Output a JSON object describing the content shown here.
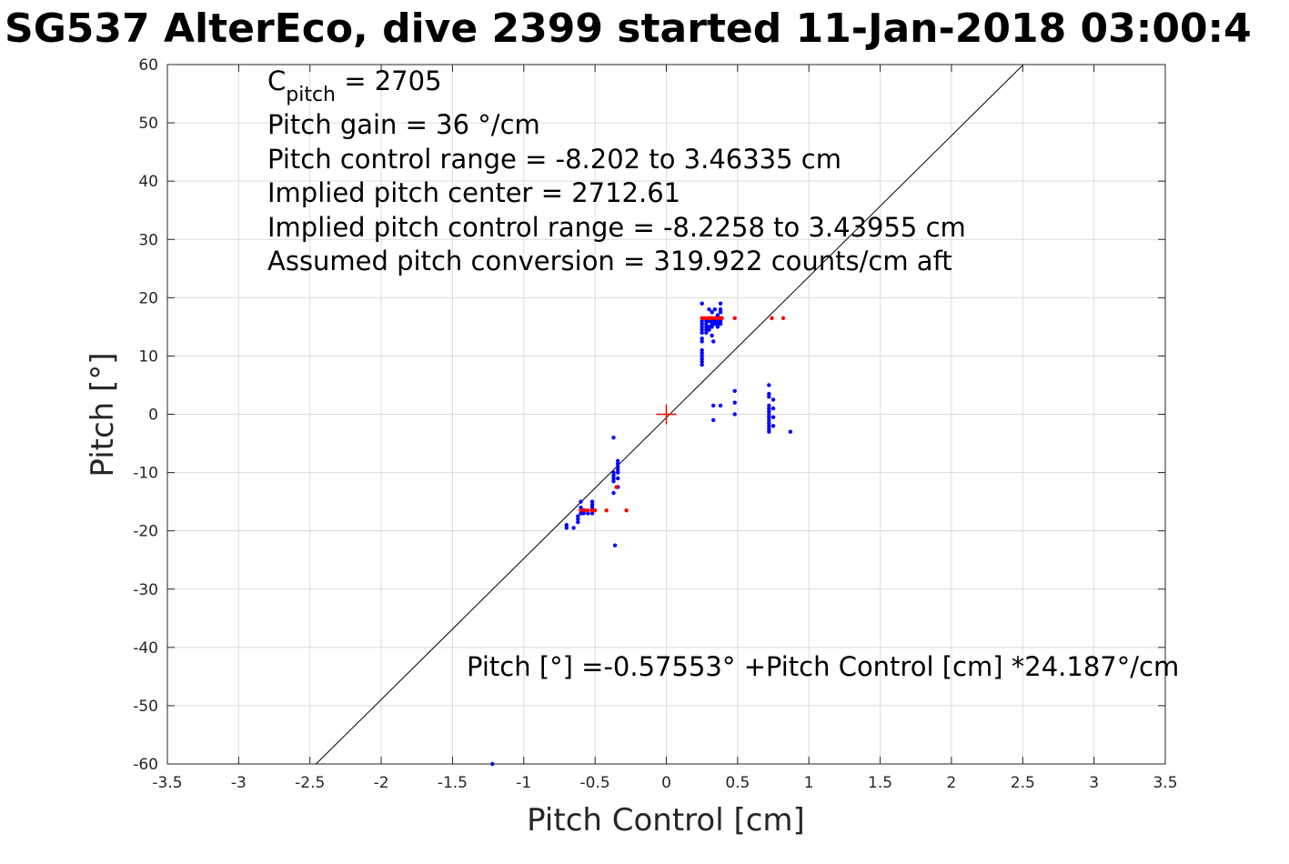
{
  "chart_data": {
    "type": "scatter",
    "title": "SG537 AlterEco, dive 2399 started 11-Jan-2018 03:00:4",
    "xlabel": "Pitch Control [cm]",
    "ylabel": "Pitch [°]",
    "xlim": [
      -3.5,
      3.5
    ],
    "ylim": [
      -60,
      60
    ],
    "xticks": [
      -3.5,
      -3,
      -2.5,
      -2,
      -1.5,
      -1,
      -0.5,
      0,
      0.5,
      1,
      1.5,
      2,
      2.5,
      3,
      3.5
    ],
    "yticks": [
      -60,
      -50,
      -40,
      -30,
      -20,
      -10,
      0,
      10,
      20,
      30,
      40,
      50,
      60
    ],
    "grid": true,
    "colors": {
      "observed": "#0000ff",
      "excluded": "#ff0000",
      "fit_line": "#000000",
      "center_marker": "#ff0000"
    },
    "annotations": {
      "c_pitch_prefix": "C",
      "c_pitch_sub": "pitch",
      "c_pitch_value": " = 2705",
      "pitch_gain": "Pitch gain = 36 °/cm",
      "pitch_control_range": "Pitch control range = -8.202 to 3.46335 cm",
      "implied_pitch_center": "Implied pitch center = 2712.61",
      "implied_control_range": "Implied pitch control range = -8.2258 to 3.43955 cm",
      "assumed_conversion": "Assumed pitch conversion = 319.922 counts/cm aft",
      "fit_equation": "Pitch [°] =-0.57553° +Pitch Control [cm] *24.187°/cm"
    },
    "fit": {
      "intercept": -0.57553,
      "slope": 24.187
    },
    "center_marker": [
      0,
      0
    ],
    "series": [
      {
        "points": [
          [
            0.25,
            19
          ],
          [
            0.25,
            16
          ],
          [
            0.25,
            15.5
          ],
          [
            0.25,
            15
          ],
          [
            0.25,
            14.5
          ],
          [
            0.25,
            14
          ],
          [
            0.25,
            13
          ],
          [
            0.25,
            12.5
          ],
          [
            0.25,
            11
          ],
          [
            0.25,
            10.5
          ],
          [
            0.25,
            10
          ],
          [
            0.25,
            9.5
          ],
          [
            0.25,
            9
          ],
          [
            0.25,
            8.5
          ],
          [
            0.28,
            16
          ],
          [
            0.28,
            15.5
          ],
          [
            0.28,
            15
          ],
          [
            0.28,
            14.5
          ],
          [
            0.28,
            14
          ],
          [
            0.3,
            18
          ],
          [
            0.3,
            16.5
          ],
          [
            0.3,
            16
          ],
          [
            0.3,
            15
          ],
          [
            0.3,
            14.5
          ],
          [
            0.32,
            17.5
          ],
          [
            0.32,
            16.5
          ],
          [
            0.32,
            16
          ],
          [
            0.32,
            15.5
          ],
          [
            0.32,
            15
          ],
          [
            0.32,
            13.5
          ],
          [
            0.33,
            12.5
          ],
          [
            0.34,
            18
          ],
          [
            0.34,
            16
          ],
          [
            0.34,
            15.5
          ],
          [
            0.36,
            17
          ],
          [
            0.36,
            16
          ],
          [
            0.36,
            15.5
          ],
          [
            0.36,
            15
          ],
          [
            0.38,
            19
          ],
          [
            0.38,
            18
          ],
          [
            0.38,
            17.5
          ],
          [
            0.38,
            16.5
          ],
          [
            0.38,
            16
          ],
          [
            0.38,
            15.5
          ],
          [
            0.33,
            1.5
          ],
          [
            0.33,
            -1
          ],
          [
            0.38,
            1.5
          ],
          [
            0.48,
            4
          ],
          [
            0.48,
            2
          ],
          [
            0.48,
            0
          ],
          [
            0.72,
            5
          ],
          [
            0.72,
            3.5
          ],
          [
            0.72,
            3
          ],
          [
            0.72,
            1.5
          ],
          [
            0.72,
            1
          ],
          [
            0.72,
            0.5
          ],
          [
            0.72,
            0
          ],
          [
            0.72,
            -0.5
          ],
          [
            0.72,
            -1
          ],
          [
            0.72,
            -1.5
          ],
          [
            0.72,
            -2
          ],
          [
            0.72,
            -2.5
          ],
          [
            0.72,
            -3
          ],
          [
            0.75,
            2.5
          ],
          [
            0.75,
            1
          ],
          [
            0.75,
            -0.5
          ],
          [
            0.75,
            -2
          ],
          [
            0.87,
            -3
          ],
          [
            -0.37,
            -4
          ],
          [
            -0.37,
            -10
          ],
          [
            -0.37,
            -10.5
          ],
          [
            -0.37,
            -11
          ],
          [
            -0.37,
            -11.5
          ],
          [
            -0.37,
            -13.5
          ],
          [
            -0.34,
            -8
          ],
          [
            -0.34,
            -8.5
          ],
          [
            -0.34,
            -9
          ],
          [
            -0.34,
            -9.5
          ],
          [
            -0.34,
            -10
          ],
          [
            -0.34,
            -11
          ],
          [
            -0.34,
            -12.5
          ],
          [
            -0.36,
            -22.5
          ],
          [
            -0.52,
            -15
          ],
          [
            -0.52,
            -15.5
          ],
          [
            -0.52,
            -16
          ],
          [
            -0.52,
            -16.5
          ],
          [
            -0.52,
            -17
          ],
          [
            -0.55,
            -17
          ],
          [
            -0.58,
            -16.5
          ],
          [
            -0.58,
            -17
          ],
          [
            -0.6,
            -15
          ],
          [
            -0.6,
            -16
          ],
          [
            -0.6,
            -17
          ],
          [
            -0.62,
            -17.5
          ],
          [
            -0.62,
            -18
          ],
          [
            -0.62,
            -18.5
          ],
          [
            -0.65,
            -19.5
          ],
          [
            -0.7,
            -19
          ],
          [
            -0.7,
            -19.5
          ],
          [
            -1.22,
            -60
          ]
        ]
      },
      {
        "points": [
          [
            0.25,
            16.5
          ],
          [
            0.27,
            16.5
          ],
          [
            0.29,
            16.5
          ],
          [
            0.31,
            16.5
          ],
          [
            0.32,
            16.5
          ],
          [
            0.34,
            16.5
          ],
          [
            0.35,
            16.5
          ],
          [
            0.37,
            16.5
          ],
          [
            0.39,
            16.5
          ],
          [
            0.48,
            16.5
          ],
          [
            0.74,
            16.5
          ],
          [
            0.82,
            16.5
          ],
          [
            -0.28,
            -16.5
          ],
          [
            -0.35,
            -12.5
          ],
          [
            -0.42,
            -16.5
          ],
          [
            -0.5,
            -16.5
          ],
          [
            -0.52,
            -16.5
          ],
          [
            -0.55,
            -16.5
          ],
          [
            -0.57,
            -16.5
          ],
          [
            -0.6,
            -16.5
          ]
        ]
      }
    ]
  }
}
